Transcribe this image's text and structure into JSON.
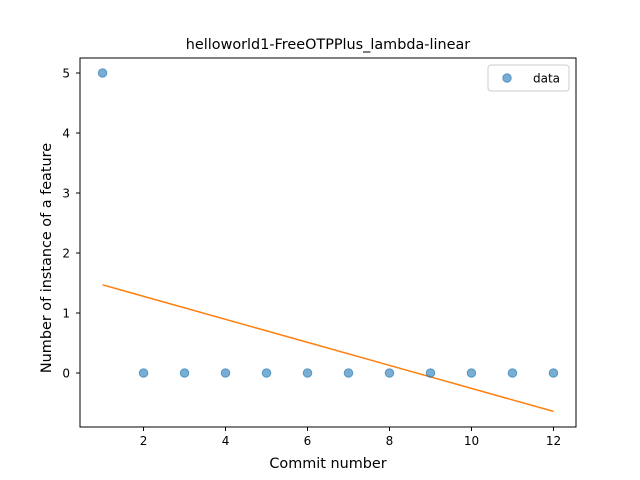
{
  "chart_data": {
    "type": "scatter",
    "title": "helloworld1-FreeOTPPlus_lambda-linear",
    "xlabel": "Commit number",
    "ylabel": "Number of instance of a feature",
    "xlim": [
      0.45,
      12.55
    ],
    "ylim": [
      -0.9,
      5.25
    ],
    "xticks": [
      2,
      4,
      6,
      8,
      10,
      12
    ],
    "yticks": [
      0,
      1,
      2,
      3,
      4,
      5
    ],
    "grid": false,
    "legend_position": "top-right",
    "series": [
      {
        "name": "data",
        "kind": "scatter",
        "color": "#1f77b4",
        "alpha": 0.6,
        "x": [
          1,
          2,
          3,
          4,
          5,
          6,
          7,
          8,
          9,
          10,
          11,
          12
        ],
        "y": [
          5,
          0,
          0,
          0,
          0,
          0,
          0,
          0,
          0,
          0,
          0,
          0
        ]
      },
      {
        "kind": "line",
        "color": "#ff7f0e",
        "x": [
          1,
          12
        ],
        "y": [
          1.47,
          -0.64
        ]
      }
    ]
  }
}
